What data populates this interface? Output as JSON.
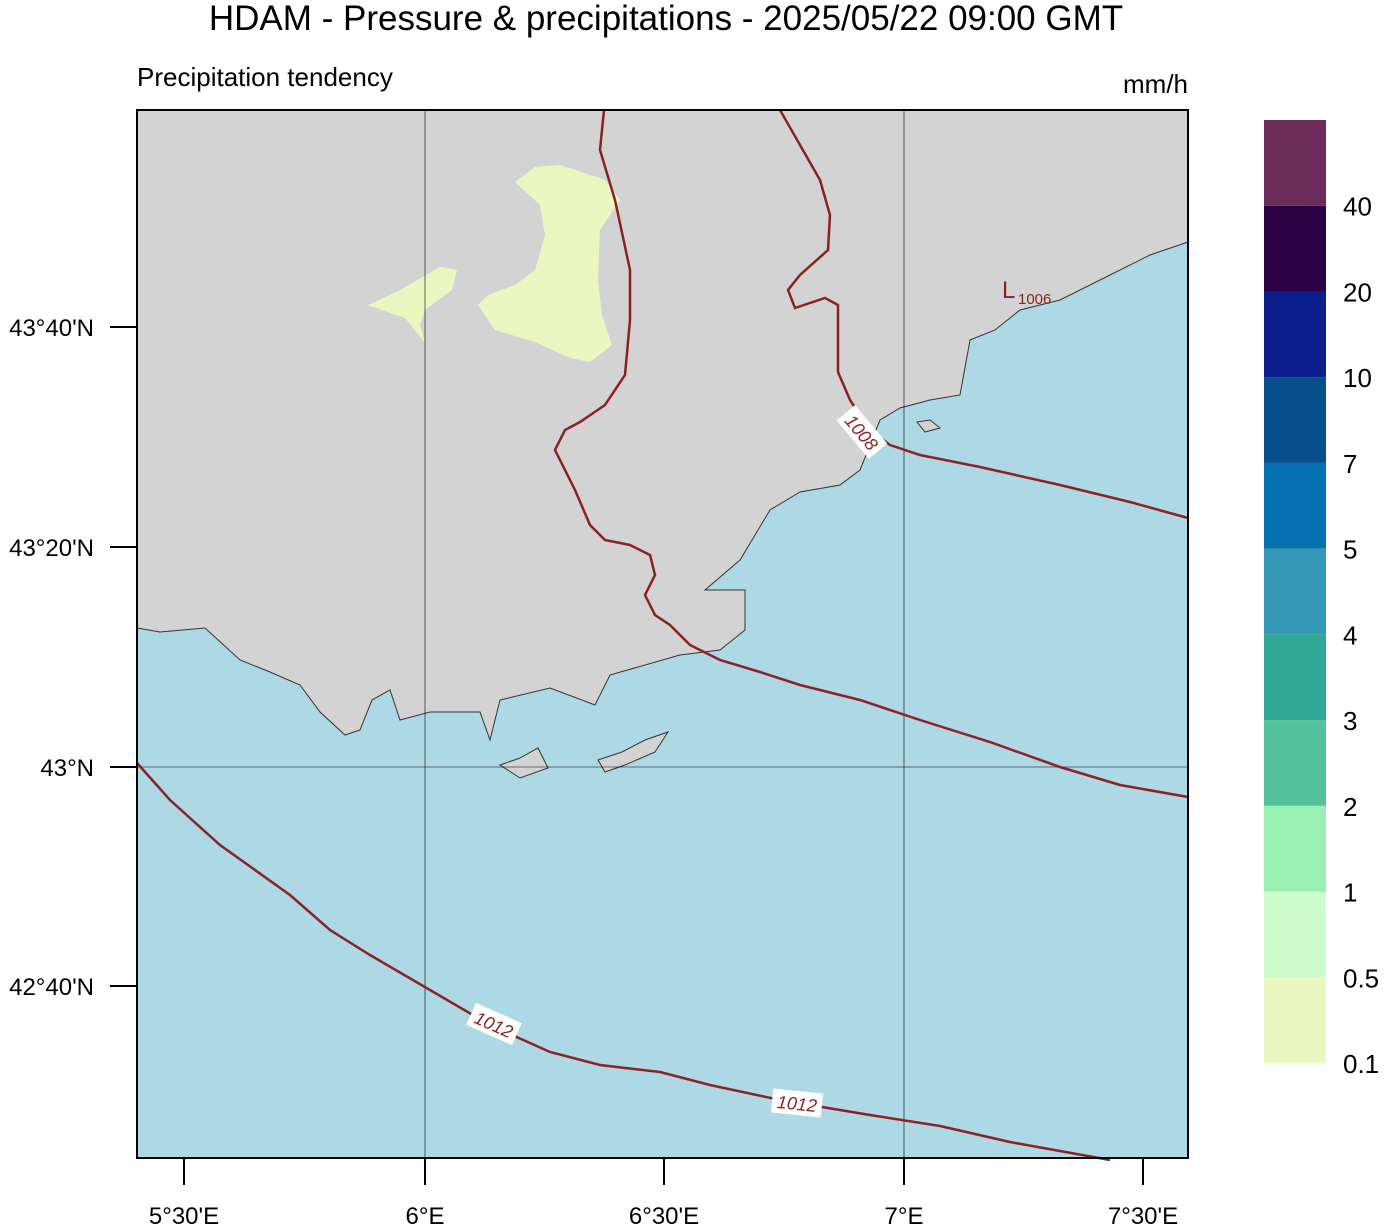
{
  "header": {
    "title": "HDAM - Pressure & precipitations  -  2025/05/22  09:00 GMT",
    "subtitle": "Precipitation tendency",
    "unit": "mm/h"
  },
  "latitude_labels": [
    "43°40'N",
    "43°20'N",
    "43°N",
    "42°40'N"
  ],
  "longitude_labels": [
    "5°30'E",
    "6°E",
    "6°30'E",
    "7°E",
    "7°30'E"
  ],
  "legend": {
    "colors": [
      "#ebf7c0",
      "#ccfccc",
      "#9aefb3",
      "#55c09c",
      "#31a996",
      "#3598b6",
      "#0471b0",
      "#074f8b",
      "#0c1d8c",
      "#2a0145",
      "#6b2c5b"
    ],
    "labels": [
      0.1,
      0.5,
      1,
      2,
      3,
      4,
      5,
      7,
      10,
      20,
      40
    ]
  },
  "isobar_labels": [
    "1008",
    "1012",
    "1012"
  ],
  "low": {
    "symbol": "L",
    "value": "1006"
  }
}
